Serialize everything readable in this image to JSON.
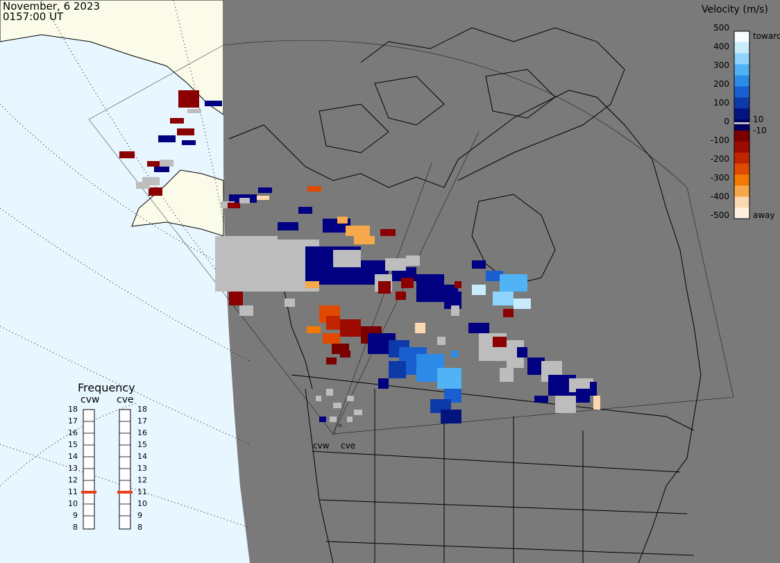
{
  "header": {
    "date": "November, 6 2023",
    "time": "0157:00 UT"
  },
  "colorbar": {
    "title": "Velocity (m/s)",
    "ticks": [
      "500",
      "400",
      "300",
      "200",
      "100",
      "0",
      "-100",
      "-200",
      "-300",
      "-400",
      "-500"
    ],
    "labels_right": {
      "toward": "toward",
      "plus10": "10",
      "minus10": "-10",
      "away": "away"
    },
    "colors": [
      "#f5fbff",
      "#c8ecfc",
      "#8fd2fb",
      "#4fb3f5",
      "#2b8be6",
      "#1a5fcf",
      "#0d3aa8",
      "#04147e",
      "#000060",
      "#7a0000",
      "#9c0a00",
      "#c02400",
      "#e04a00",
      "#f27a00",
      "#f7a84a",
      "#fbd8b0",
      "#fff0e0"
    ],
    "ground_scatter": "#bdbdbd"
  },
  "frequency": {
    "title": "Frequency",
    "radars": [
      "cvw",
      "cve"
    ],
    "scale": [
      "18",
      "17",
      "16",
      "15",
      "14",
      "13",
      "12",
      "11",
      "10",
      "9",
      "8"
    ],
    "values_mhz": [
      11,
      11
    ],
    "marker_color": "#e8401a"
  },
  "sites": {
    "cvw": "cvw",
    "cve": "cve"
  },
  "map": {
    "ocean_color": "#e8f6ff",
    "land_color": "#fbfbea",
    "night_color": "#7a7a7a"
  }
}
